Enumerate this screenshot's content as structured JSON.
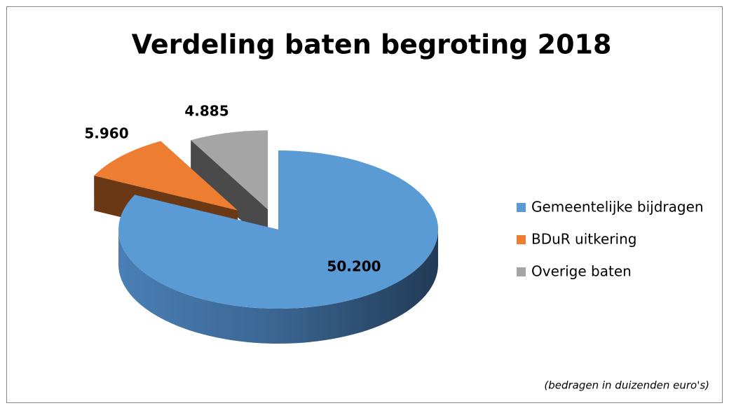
{
  "chart_data": {
    "type": "pie3d",
    "title": "Verdeling baten begroting 2018",
    "categories": [
      "Gemeentelijke bijdragen",
      "BDuR uitkering",
      "Overige baten"
    ],
    "values": [
      50200,
      5960,
      4885
    ],
    "value_labels": [
      "50.200",
      "5.960",
      "4.885"
    ],
    "colors": [
      "#5b9bd5",
      "#ed7d31",
      "#a5a5a5"
    ],
    "note": "(bedragen in duizenden euro's)"
  }
}
